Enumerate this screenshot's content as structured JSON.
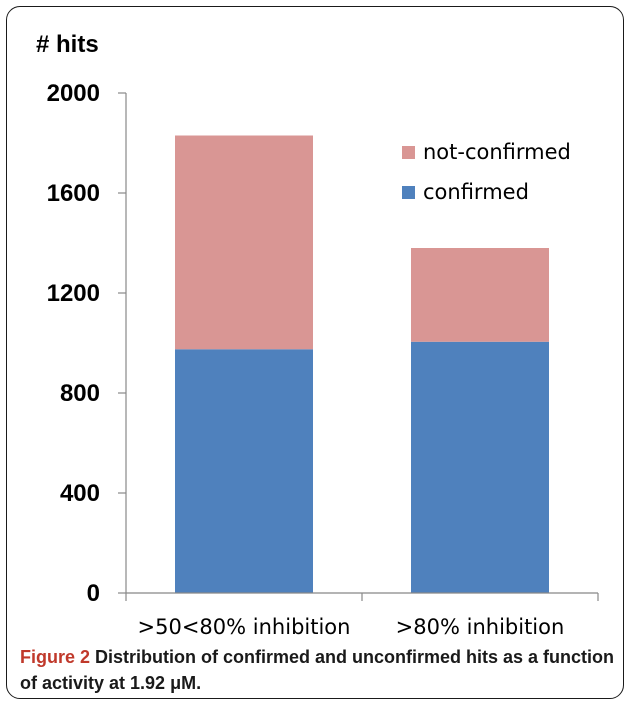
{
  "chart_data": {
    "type": "bar",
    "stacked": true,
    "ylabel": "# hits",
    "ylim": [
      0,
      2000
    ],
    "yticks": [
      0,
      400,
      800,
      1200,
      1600,
      2000
    ],
    "grid": false,
    "legend_position": "top-right",
    "categories": [
      ">50<80% inhibition",
      ">80% inhibition"
    ],
    "series": [
      {
        "name": "confirmed",
        "color": "#4f81bd",
        "values": [
          975,
          1005
        ]
      },
      {
        "name": "not-confirmed",
        "color": "#d99694",
        "values": [
          855,
          375
        ]
      }
    ]
  },
  "caption": {
    "lead": "Figure 2",
    "text": " Distribution of confirmed and unconfirmed hits as a function of activity at 1.92 μM."
  }
}
